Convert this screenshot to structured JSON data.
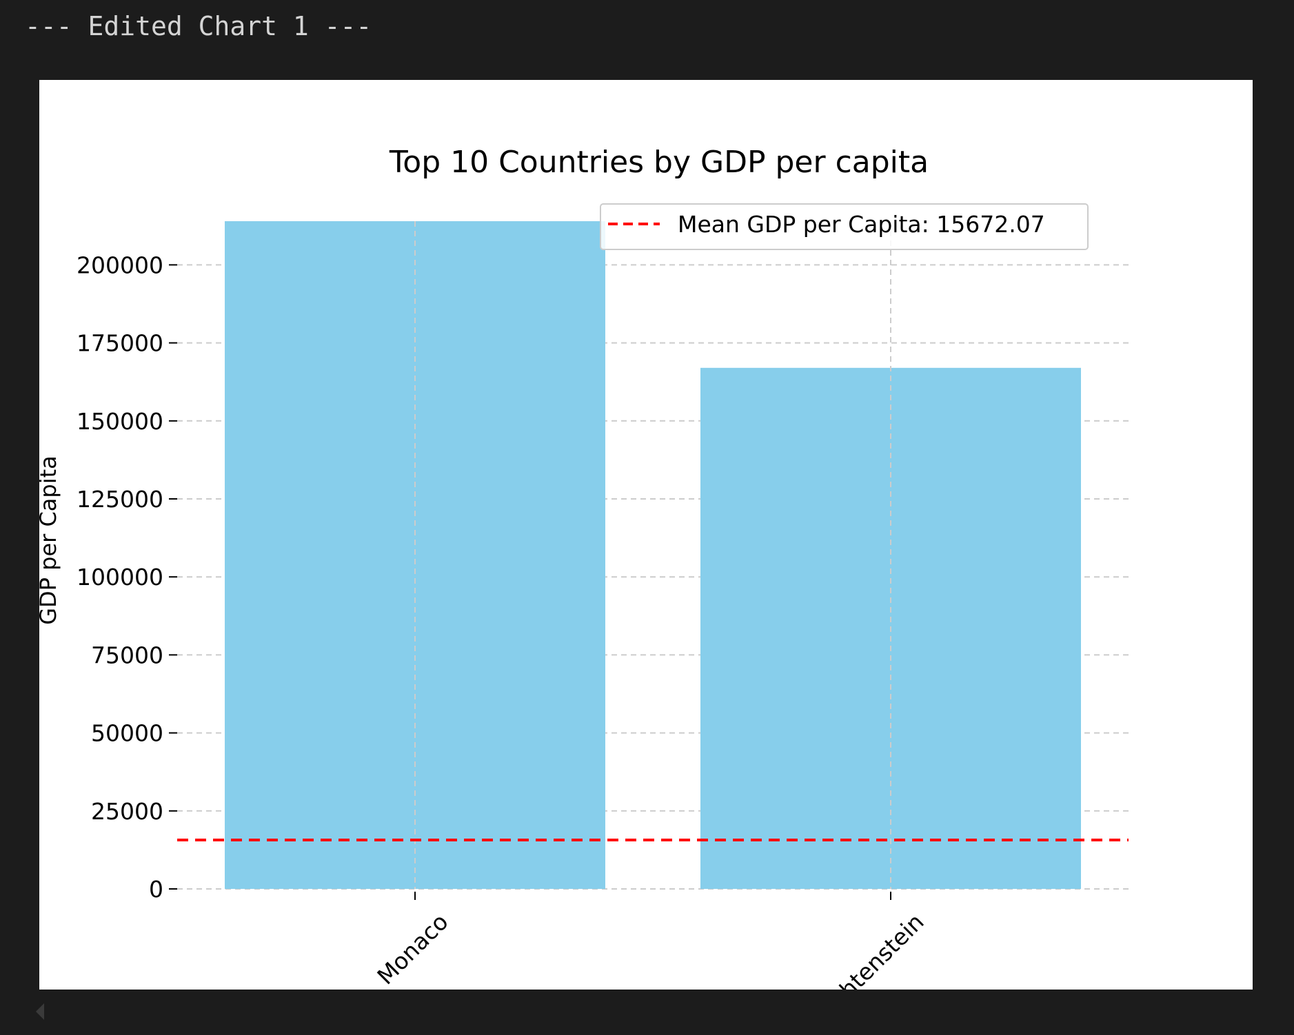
{
  "output": {
    "header": "--- Edited Chart 1 ---"
  },
  "colors": {
    "background": "#1c1c1c",
    "bar": "#87ceeb",
    "mean_line": "#ff0000",
    "grid": "#cccccc"
  },
  "chart_data": {
    "type": "bar",
    "title": "Top 10 Countries by GDP per capita",
    "xlabel": "",
    "ylabel": "GDP per Capita",
    "categories": [
      "Monaco",
      "Liechtenstein"
    ],
    "values": [
      214000,
      167000
    ],
    "ylim": [
      0,
      214000
    ],
    "yticks": [
      0,
      25000,
      50000,
      75000,
      100000,
      125000,
      150000,
      175000,
      200000
    ],
    "xtick_rotation": 45,
    "grid": true,
    "mean_line": {
      "value": 15672.07,
      "label": "Mean GDP per Capita: 15672.07",
      "style": "dashed"
    },
    "legend": {
      "placement": "upper right",
      "entries": [
        "Mean GDP per Capita: 15672.07"
      ]
    }
  }
}
